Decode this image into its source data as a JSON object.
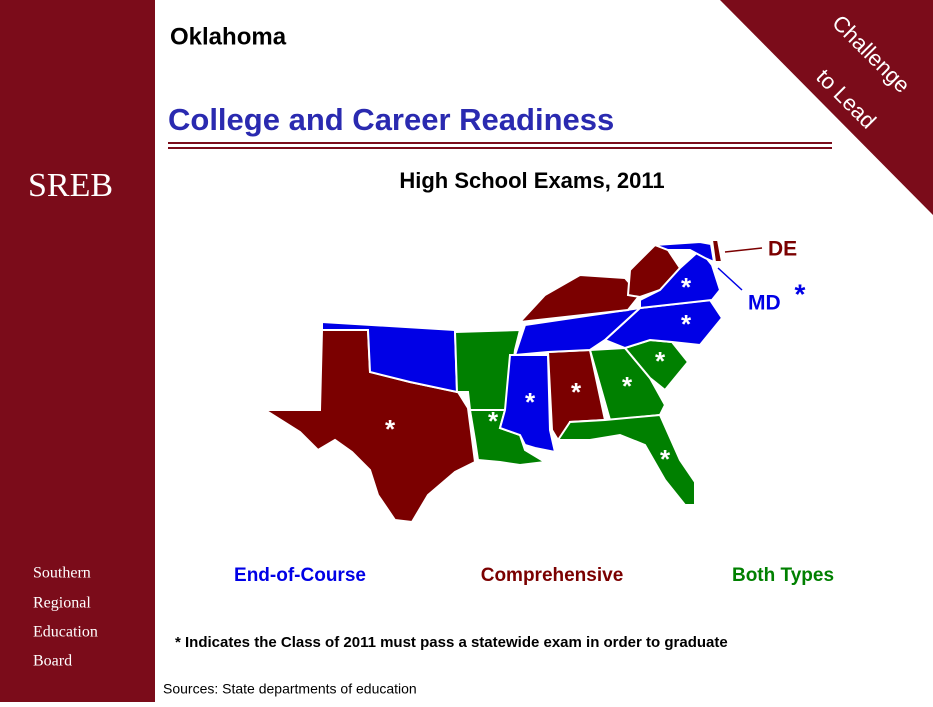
{
  "header": {
    "state": "Oklahoma",
    "title": "College and Career Readiness",
    "subtitle": "High School Exams, 2011",
    "banner": [
      "Challenge",
      "to Lead"
    ]
  },
  "sidebar": {
    "logo": "SREB",
    "org": [
      "Southern",
      "Regional",
      "Education",
      "Board"
    ]
  },
  "legend": [
    {
      "label": "End-of-Course",
      "color": "#0000e6"
    },
    {
      "label": "Comprehensive",
      "color": "#7b0000"
    },
    {
      "label": "Both Types",
      "color": "#008000"
    }
  ],
  "map": {
    "regions": [
      {
        "color": "#7b0000",
        "label": "*"
      },
      {
        "color": "#0000e6"
      },
      {
        "color": "#008000"
      },
      {
        "color": "#008000",
        "label": "*"
      },
      {
        "color": "#0000e6",
        "label": "*"
      },
      {
        "color": "#7b0000",
        "label": "*"
      },
      {
        "color": "#008000",
        "label": "*"
      },
      {
        "color": "#008000",
        "label": "*"
      },
      {
        "color": "#008000",
        "label": "*"
      },
      {
        "color": "#0000e6",
        "label": "*"
      },
      {
        "color": "#0000e6"
      },
      {
        "color": "#7b0000"
      },
      {
        "color": "#7b0000"
      },
      {
        "color": "#0000e6",
        "label": "*"
      },
      {
        "color": "#0000e6"
      },
      {
        "color": "#7b0000"
      }
    ],
    "callouts": [
      {
        "label": "DE",
        "color": "#7b0000"
      },
      {
        "label": "MD",
        "color": "#0000e6",
        "mark": "*"
      }
    ]
  },
  "footnote": "* Indicates the Class of 2011 must pass a statewide exam in order to graduate",
  "sources": "Sources: State departments of education"
}
